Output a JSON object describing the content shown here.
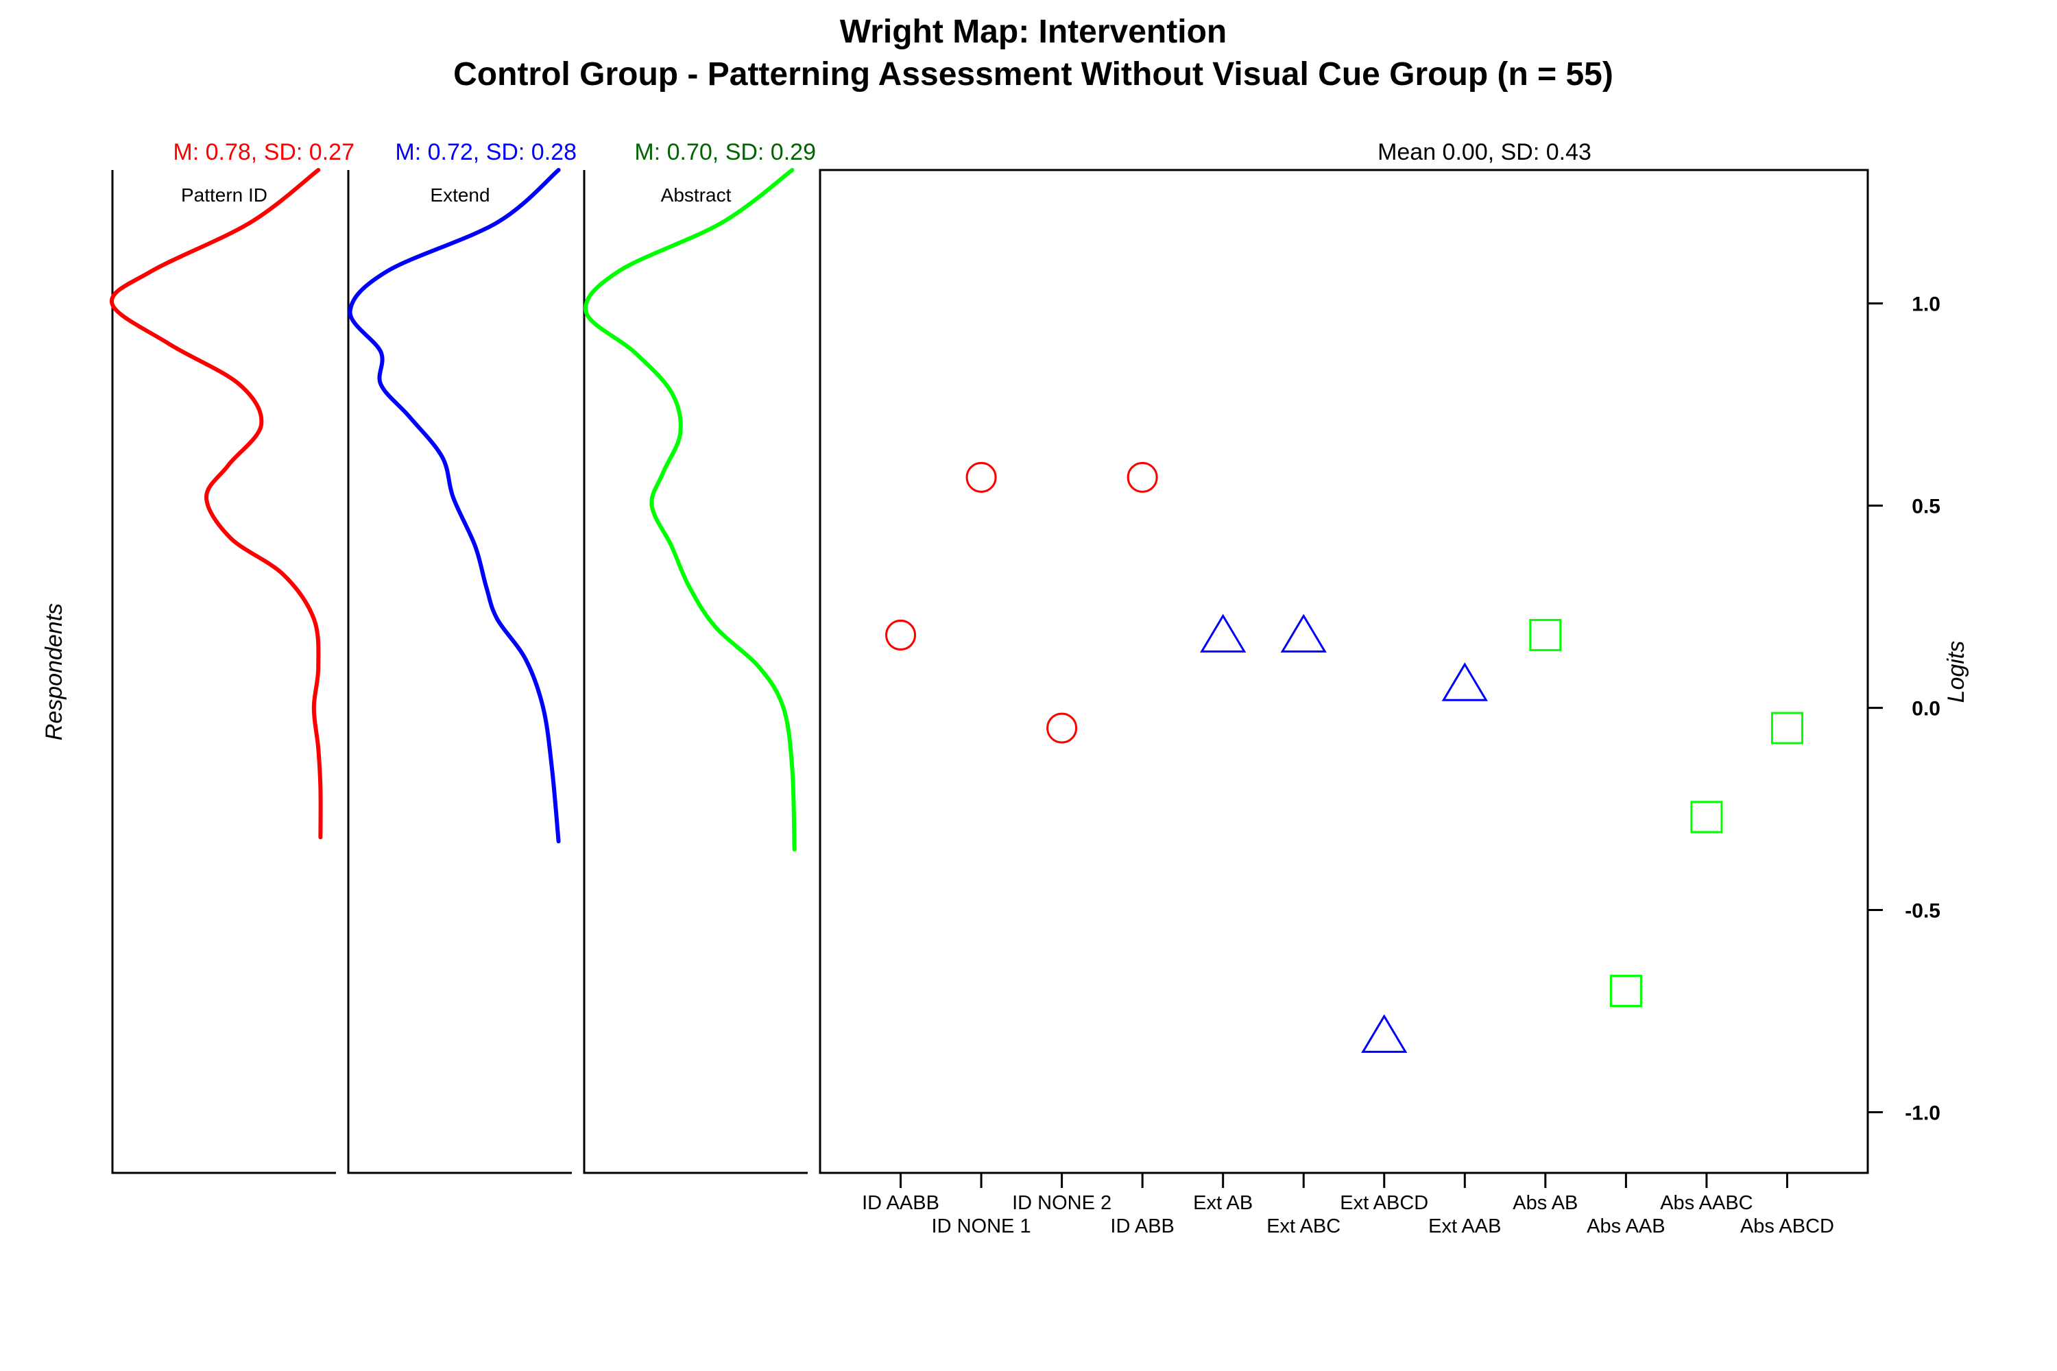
{
  "chart_data": {
    "type": "scatter",
    "title": "Wright Map: Intervention",
    "subtitle": "Control Group - Patterning Assessment Without Visual Cue Group (n = 55)",
    "ylabel": "Logits",
    "left_axis_label": "Respondents",
    "ylim": [
      -1.15,
      1.33
    ],
    "yticks": [
      1.0,
      0.5,
      0.0,
      -0.5,
      -1.0
    ],
    "ytick_labels": [
      "1.0",
      "0.5",
      "0.0",
      "-0.5",
      "-1.0"
    ],
    "item_stats": "Mean 0.00, SD: 0.43",
    "respondent_panels": [
      {
        "name": "Pattern ID",
        "stats": "M: 0.78, SD: 0.27",
        "color": "#ff0000",
        "stats_color": "#ff0000",
        "density_profile": [
          {
            "y": 1.33,
            "d": 0.04
          },
          {
            "y": 1.2,
            "d": 0.35
          },
          {
            "y": 1.08,
            "d": 0.8
          },
          {
            "y": 1.0,
            "d": 0.98
          },
          {
            "y": 0.9,
            "d": 0.72
          },
          {
            "y": 0.8,
            "d": 0.4
          },
          {
            "y": 0.7,
            "d": 0.3
          },
          {
            "y": 0.6,
            "d": 0.45
          },
          {
            "y": 0.52,
            "d": 0.55
          },
          {
            "y": 0.42,
            "d": 0.44
          },
          {
            "y": 0.33,
            "d": 0.2
          },
          {
            "y": 0.22,
            "d": 0.06
          },
          {
            "y": 0.1,
            "d": 0.04
          },
          {
            "y": 0.0,
            "d": 0.06
          },
          {
            "y": -0.1,
            "d": 0.04
          },
          {
            "y": -0.2,
            "d": 0.03
          },
          {
            "y": -0.32,
            "d": 0.03
          }
        ]
      },
      {
        "name": "Extend",
        "stats": "M: 0.72, SD: 0.28",
        "color": "#0000ff",
        "stats_color": "#0000ff",
        "density_profile": [
          {
            "y": 1.33,
            "d": 0.02
          },
          {
            "y": 1.2,
            "d": 0.3
          },
          {
            "y": 1.08,
            "d": 0.8
          },
          {
            "y": 0.98,
            "d": 0.97
          },
          {
            "y": 0.88,
            "d": 0.83
          },
          {
            "y": 0.8,
            "d": 0.83
          },
          {
            "y": 0.72,
            "d": 0.7
          },
          {
            "y": 0.62,
            "d": 0.55
          },
          {
            "y": 0.52,
            "d": 0.5
          },
          {
            "y": 0.4,
            "d": 0.4
          },
          {
            "y": 0.3,
            "d": 0.35
          },
          {
            "y": 0.22,
            "d": 0.3
          },
          {
            "y": 0.12,
            "d": 0.17
          },
          {
            "y": 0.0,
            "d": 0.09
          },
          {
            "y": -0.15,
            "d": 0.05
          },
          {
            "y": -0.33,
            "d": 0.02
          }
        ]
      },
      {
        "name": "Abstract",
        "stats": "M: 0.70, SD: 0.29",
        "color": "#00ff00",
        "stats_color": "#006400",
        "density_profile": [
          {
            "y": 1.33,
            "d": 0.03
          },
          {
            "y": 1.2,
            "d": 0.35
          },
          {
            "y": 1.08,
            "d": 0.82
          },
          {
            "y": 0.98,
            "d": 0.97
          },
          {
            "y": 0.88,
            "d": 0.75
          },
          {
            "y": 0.78,
            "d": 0.58
          },
          {
            "y": 0.68,
            "d": 0.54
          },
          {
            "y": 0.58,
            "d": 0.62
          },
          {
            "y": 0.5,
            "d": 0.67
          },
          {
            "y": 0.4,
            "d": 0.58
          },
          {
            "y": 0.3,
            "d": 0.5
          },
          {
            "y": 0.2,
            "d": 0.38
          },
          {
            "y": 0.1,
            "d": 0.18
          },
          {
            "y": 0.0,
            "d": 0.07
          },
          {
            "y": -0.15,
            "d": 0.03
          },
          {
            "y": -0.35,
            "d": 0.02
          }
        ]
      }
    ],
    "items": [
      {
        "label": "ID AABB",
        "group": "Pattern ID",
        "shape": "circle",
        "color": "#ff0000",
        "value": 0.18
      },
      {
        "label": "ID NONE 1",
        "group": "Pattern ID",
        "shape": "circle",
        "color": "#ff0000",
        "value": 0.57
      },
      {
        "label": "ID NONE 2",
        "group": "Pattern ID",
        "shape": "circle",
        "color": "#ff0000",
        "value": -0.05
      },
      {
        "label": "ID ABB",
        "group": "Pattern ID",
        "shape": "circle",
        "color": "#ff0000",
        "value": 0.57
      },
      {
        "label": "Ext AB",
        "group": "Extend",
        "shape": "triangle",
        "color": "#0000ff",
        "value": 0.18
      },
      {
        "label": "Ext ABC",
        "group": "Extend",
        "shape": "triangle",
        "color": "#0000ff",
        "value": 0.18
      },
      {
        "label": "Ext ABCD",
        "group": "Extend",
        "shape": "triangle",
        "color": "#0000ff",
        "value": -0.81
      },
      {
        "label": "Ext AAB",
        "group": "Extend",
        "shape": "triangle",
        "color": "#0000ff",
        "value": 0.06
      },
      {
        "label": "Abs AB",
        "group": "Abstract",
        "shape": "square",
        "color": "#00ff00",
        "value": 0.18
      },
      {
        "label": "Abs AAB",
        "group": "Abstract",
        "shape": "square",
        "color": "#00ff00",
        "value": -0.7
      },
      {
        "label": "Abs AABC",
        "group": "Abstract",
        "shape": "square",
        "color": "#00ff00",
        "value": -0.27
      },
      {
        "label": "Abs ABCD",
        "group": "Abstract",
        "shape": "square",
        "color": "#00ff00",
        "value": -0.05
      }
    ]
  }
}
